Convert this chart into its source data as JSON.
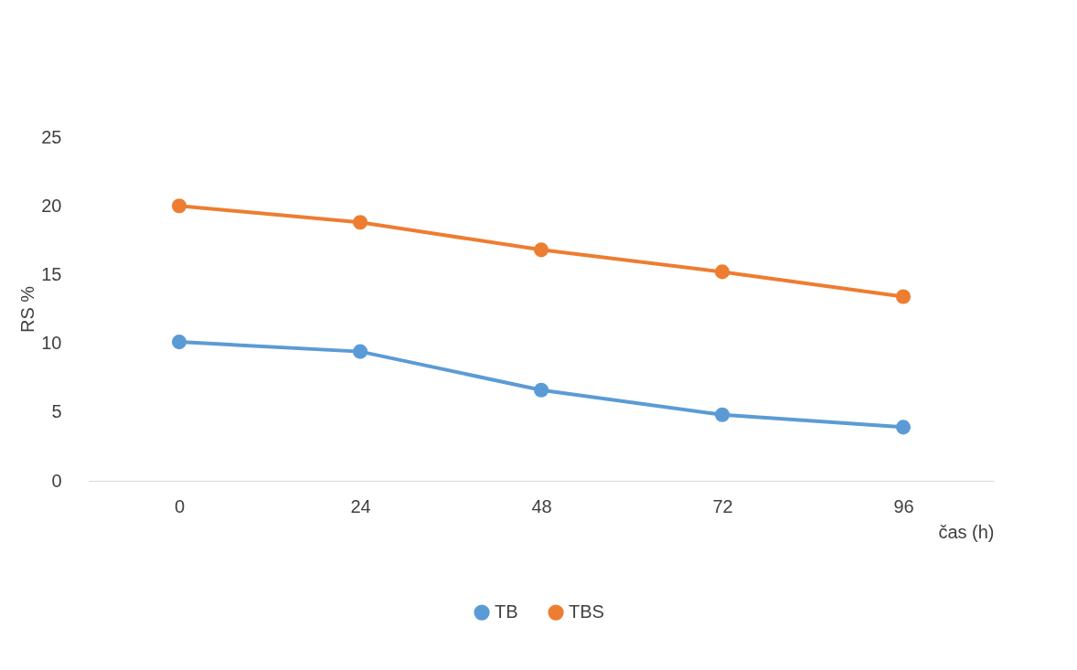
{
  "chart_data": {
    "type": "line",
    "xlabel": "čas (h)",
    "ylabel": "RS %",
    "categories": [
      "0",
      "24",
      "48",
      "72",
      "96"
    ],
    "series": [
      {
        "name": "TB",
        "color": "#5b9bd5",
        "values": [
          10.1,
          9.4,
          6.6,
          4.8,
          3.9
        ]
      },
      {
        "name": "TBS",
        "color": "#ed7d31",
        "values": [
          20.0,
          18.8,
          16.8,
          15.2,
          13.4
        ]
      }
    ],
    "ylim": [
      0,
      25
    ],
    "yticks": [
      0,
      5,
      10,
      15,
      20,
      25
    ],
    "grid": false,
    "legend": "bottom",
    "marker": "circle",
    "line_style": "solid"
  }
}
